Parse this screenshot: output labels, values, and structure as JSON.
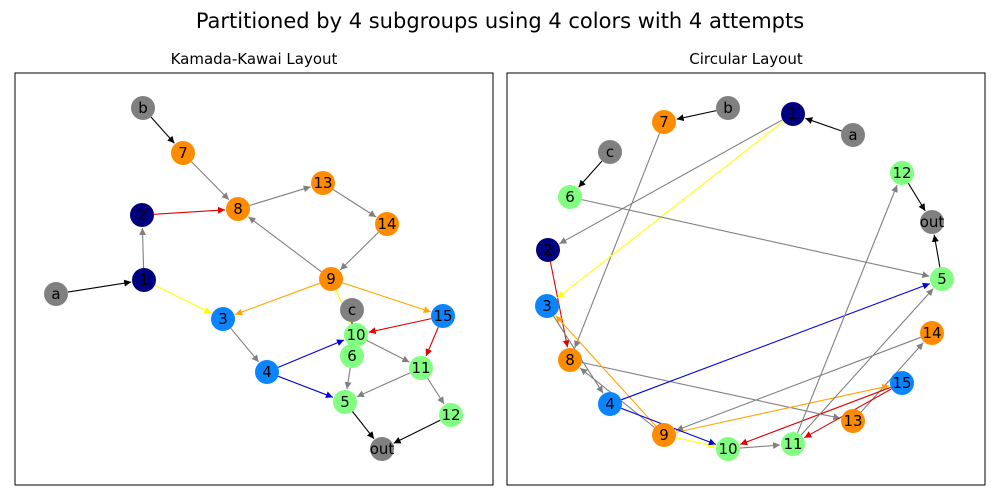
{
  "suptitle": "Partitioned by 4 subgroups using 4 colors with 4 attempts",
  "colors": {
    "gray": "#808080",
    "orange": "#ff8c00",
    "navy": "#00007f",
    "blue": "#0a84ff",
    "green": "#80ff80",
    "edge_gray": "#808080",
    "edge_black": "#000000",
    "edge_red": "#e00000",
    "edge_orange": "#ffa500",
    "edge_yellow": "#ffff00",
    "edge_blue": "#0000dd"
  },
  "nodes": [
    {
      "id": "b",
      "label": "b",
      "color": "gray"
    },
    {
      "id": "7",
      "label": "7",
      "color": "orange"
    },
    {
      "id": "8",
      "label": "8",
      "color": "orange"
    },
    {
      "id": "13",
      "label": "13",
      "color": "orange"
    },
    {
      "id": "14",
      "label": "14",
      "color": "orange"
    },
    {
      "id": "9",
      "label": "9",
      "color": "orange"
    },
    {
      "id": "2",
      "label": "2",
      "color": "navy"
    },
    {
      "id": "1",
      "label": "1",
      "color": "navy"
    },
    {
      "id": "a",
      "label": "a",
      "color": "gray"
    },
    {
      "id": "3",
      "label": "3",
      "color": "blue"
    },
    {
      "id": "c",
      "label": "c",
      "color": "gray"
    },
    {
      "id": "15",
      "label": "15",
      "color": "blue"
    },
    {
      "id": "10",
      "label": "10",
      "color": "green"
    },
    {
      "id": "6",
      "label": "6",
      "color": "green"
    },
    {
      "id": "4",
      "label": "4",
      "color": "blue"
    },
    {
      "id": "11",
      "label": "11",
      "color": "green"
    },
    {
      "id": "5",
      "label": "5",
      "color": "green"
    },
    {
      "id": "12",
      "label": "12",
      "color": "green"
    },
    {
      "id": "out",
      "label": "out",
      "color": "gray"
    }
  ],
  "edges": [
    {
      "from": "b",
      "to": "7",
      "color": "edge_black"
    },
    {
      "from": "7",
      "to": "8",
      "color": "edge_gray"
    },
    {
      "from": "2",
      "to": "8",
      "color": "edge_red"
    },
    {
      "from": "8",
      "to": "13",
      "color": "edge_gray"
    },
    {
      "from": "13",
      "to": "14",
      "color": "edge_gray"
    },
    {
      "from": "14",
      "to": "9",
      "color": "edge_gray"
    },
    {
      "from": "9",
      "to": "8",
      "color": "edge_gray"
    },
    {
      "from": "1",
      "to": "2",
      "color": "edge_gray"
    },
    {
      "from": "a",
      "to": "1",
      "color": "edge_black"
    },
    {
      "from": "1",
      "to": "3",
      "color": "edge_yellow"
    },
    {
      "from": "9",
      "to": "3",
      "color": "edge_orange"
    },
    {
      "from": "9",
      "to": "15",
      "color": "edge_orange"
    },
    {
      "from": "9",
      "to": "10",
      "color": "edge_yellow"
    },
    {
      "from": "3",
      "to": "4",
      "color": "edge_gray"
    },
    {
      "from": "4",
      "to": "10",
      "color": "edge_blue"
    },
    {
      "from": "4",
      "to": "5",
      "color": "edge_blue"
    },
    {
      "from": "15",
      "to": "10",
      "color": "edge_red"
    },
    {
      "from": "15",
      "to": "11",
      "color": "edge_red"
    },
    {
      "from": "10",
      "to": "11",
      "color": "edge_gray"
    },
    {
      "from": "6",
      "to": "5",
      "color": "edge_gray"
    },
    {
      "from": "11",
      "to": "5",
      "color": "edge_gray"
    },
    {
      "from": "11",
      "to": "12",
      "color": "edge_gray"
    },
    {
      "from": "5",
      "to": "out",
      "color": "edge_black"
    },
    {
      "from": "12",
      "to": "out",
      "color": "edge_black"
    },
    {
      "from": "c",
      "to": "6",
      "color": "edge_black"
    }
  ],
  "panels": [
    {
      "id": "kamada-kawai",
      "title": "Kamada-Kawai Layout"
    },
    {
      "id": "circular",
      "title": "Circular Layout"
    }
  ]
}
